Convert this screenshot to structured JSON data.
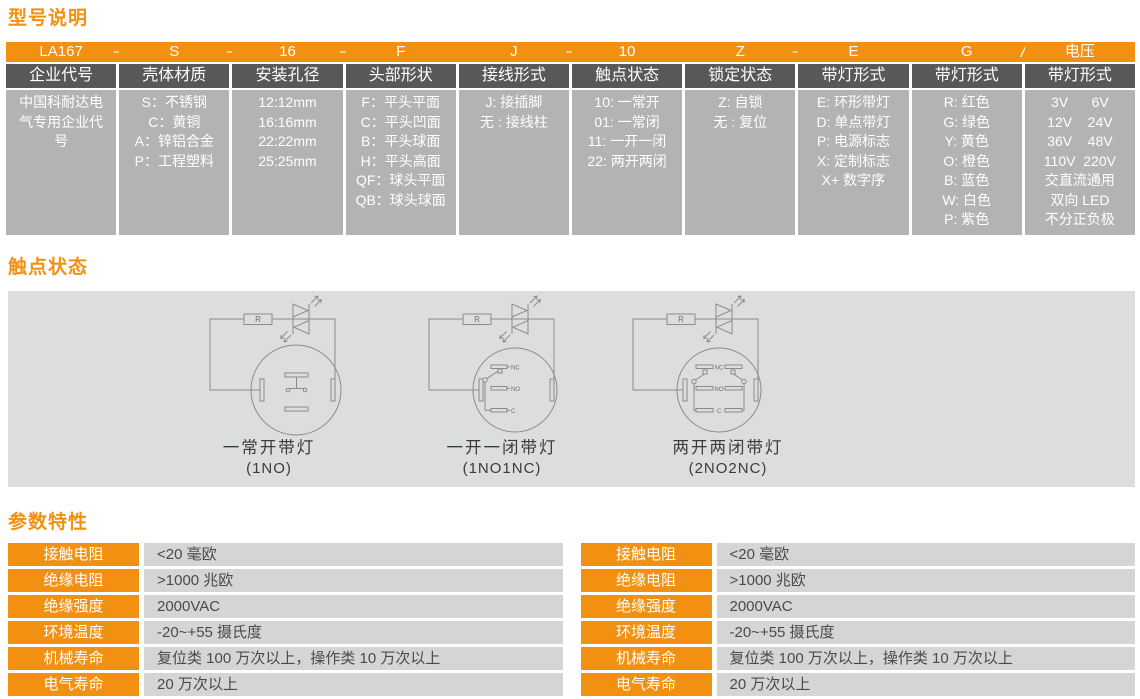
{
  "colors": {
    "accent_orange": "#F29111",
    "header_dark_gray": "#595757",
    "option_cell_gray": "#B3B3B4",
    "panel_gray": "#DCDDDD",
    "value_cell_gray": "#D5D5D6",
    "dark_text": "#3E3A39",
    "diagram_line_gray": "#8B8B8B"
  },
  "sections": {
    "model": {
      "title": "型号说明",
      "columns": [
        {
          "code": "LA167",
          "sep_after": "–",
          "header": "企业代号",
          "options": [
            "中国科耐达电",
            "气专用企业代",
            "号"
          ]
        },
        {
          "code": "S",
          "sep_after": "–",
          "header": "壳体材质",
          "options": [
            "S：不锈钢",
            "C：黄铜",
            "A：锌铝合金",
            "P：工程塑料"
          ]
        },
        {
          "code": "16",
          "sep_after": "–",
          "header": "安装孔径",
          "options": [
            "12:12mm",
            "16:16mm",
            "22:22mm",
            "25:25mm"
          ]
        },
        {
          "code": "F",
          "sep_after": "",
          "header": "头部形状",
          "options": [
            "F：平头平面",
            "C：平头凹面",
            "B：平头球面",
            "H：平头高面",
            "QF：球头平面",
            "QB：球头球面"
          ]
        },
        {
          "code": "J",
          "sep_after": "–",
          "header": "接线形式",
          "options": [
            "J: 接插脚",
            "无 : 接线柱"
          ]
        },
        {
          "code": "10",
          "sep_after": "",
          "header": "触点状态",
          "options": [
            "10: 一常开",
            "01: 一常闭",
            "11: 一开一闭",
            "22: 两开两闭"
          ]
        },
        {
          "code": "Z",
          "sep_after": "–",
          "header": "锁定状态",
          "options": [
            "Z: 自锁",
            "无 : 复位"
          ]
        },
        {
          "code": "E",
          "sep_after": "",
          "header": "带灯形式",
          "options": [
            "E: 环形带灯",
            "D: 单点带灯",
            "P: 电源标志",
            "X: 定制标志",
            "X+ 数字序"
          ]
        },
        {
          "code": "G",
          "sep_after": "/",
          "header": "带灯形式",
          "options": [
            "R: 红色",
            "G: 绿色",
            "Y: 黄色",
            "O: 橙色",
            "B: 蓝色",
            "W: 白色",
            "P: 紫色"
          ]
        },
        {
          "code": "电压",
          "sep_after": "",
          "header": "带灯形式",
          "options": [
            "3V      6V",
            "12V    24V",
            "36V    48V",
            "110V  220V",
            "交直流通用",
            "双向 LED",
            "不分正负极"
          ]
        }
      ]
    },
    "contacts": {
      "title": "触点状态",
      "diagrams": [
        {
          "type": "1no",
          "resistor_label": "R",
          "labels": {
            "nc": "",
            "no": "",
            "c": ""
          },
          "caption": "一常开带灯",
          "code": "(1NO)"
        },
        {
          "type": "1no1nc",
          "resistor_label": "R",
          "labels": {
            "nc": "NC",
            "no": "NO",
            "c": "C"
          },
          "caption": "一开一闭带灯",
          "code": "(1NO1NC)"
        },
        {
          "type": "2no2nc",
          "resistor_label": "R",
          "labels": {
            "nc": "NC",
            "no": "NO",
            "c": "C"
          },
          "caption": "两开两闭带灯",
          "code": "(2NO2NC)"
        }
      ]
    },
    "params": {
      "title": "参数特性",
      "rows": [
        {
          "label": "接触电阻",
          "value": "<20 毫欧"
        },
        {
          "label": "绝缘电阻",
          "value": ">1000 兆欧"
        },
        {
          "label": "绝缘强度",
          "value": "2000VAC"
        },
        {
          "label": "环境温度",
          "value": "-20~+55 摄氏度"
        },
        {
          "label": "机械寿命",
          "value": "复位类 100 万次以上，操作类 10 万次以上"
        },
        {
          "label": "电气寿命",
          "value": "20 万次以上"
        }
      ]
    }
  }
}
